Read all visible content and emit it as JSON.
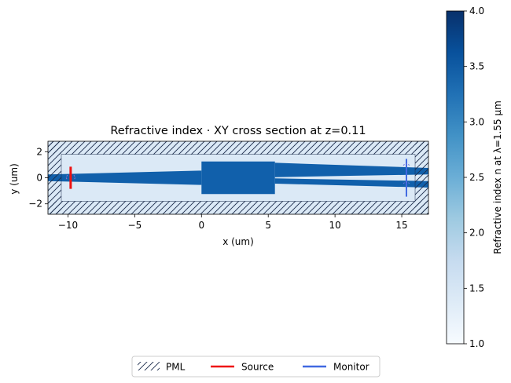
{
  "chart_data": {
    "type": "heatmap",
    "title": "Refractive index · XY cross section at z=0.11",
    "xlabel": "x (um)",
    "ylabel": "y (um)",
    "xlim": [
      -11.5,
      17
    ],
    "ylim": [
      -2.8,
      2.8
    ],
    "xticks": [
      -10,
      -5,
      0,
      5,
      10,
      15
    ],
    "yticks": [
      -2,
      0,
      2
    ],
    "xtick_labels": [
      "−10",
      "−5",
      "0",
      "5",
      "10",
      "15"
    ],
    "ytick_labels": [
      "−2",
      "0",
      "2"
    ],
    "pml_thickness": 1.0,
    "background_index": 1.44,
    "core_index": 3.48,
    "structures": [
      {
        "name": "input taper",
        "points": [
          [
            -11.5,
            0.25
          ],
          [
            0,
            0.55
          ],
          [
            0,
            -0.55
          ],
          [
            -11.5,
            -0.25
          ]
        ]
      },
      {
        "name": "mmi body",
        "points": [
          [
            0,
            1.25
          ],
          [
            5.5,
            1.25
          ],
          [
            5.5,
            -1.25
          ],
          [
            0,
            -1.25
          ]
        ]
      },
      {
        "name": "upper output taper",
        "points": [
          [
            5.5,
            1.15
          ],
          [
            17,
            0.75
          ],
          [
            17,
            0.25
          ],
          [
            5.5,
            0.05
          ]
        ]
      },
      {
        "name": "lower output taper",
        "points": [
          [
            5.5,
            -0.05
          ],
          [
            17,
            -0.25
          ],
          [
            17,
            -0.75
          ],
          [
            5.5,
            -0.45
          ]
        ]
      }
    ],
    "source": {
      "x": -9.8,
      "y_range": [
        -0.85,
        0.85
      ]
    },
    "monitor": {
      "x": 15.35,
      "y_range": [
        -1.45,
        1.45
      ]
    },
    "colorbar": {
      "label": "Refractive index n at λ=1.55 µm",
      "range": [
        1.0,
        4.0
      ],
      "ticks": [
        1.0,
        1.5,
        2.0,
        2.5,
        3.0,
        3.5,
        4.0
      ],
      "tick_labels": [
        "1.0",
        "1.5",
        "2.0",
        "2.5",
        "3.0",
        "3.5",
        "4.0"
      ],
      "color_low": "#f7fbff",
      "color_high": "#08306b"
    },
    "legend": {
      "placement": "bottom-center",
      "entries": [
        {
          "label": "PML",
          "style": "hatch",
          "color": "#000000"
        },
        {
          "label": "Source",
          "style": "line",
          "color": "#ee1111"
        },
        {
          "label": "Monitor",
          "style": "line",
          "color": "#4169e1"
        }
      ]
    }
  }
}
